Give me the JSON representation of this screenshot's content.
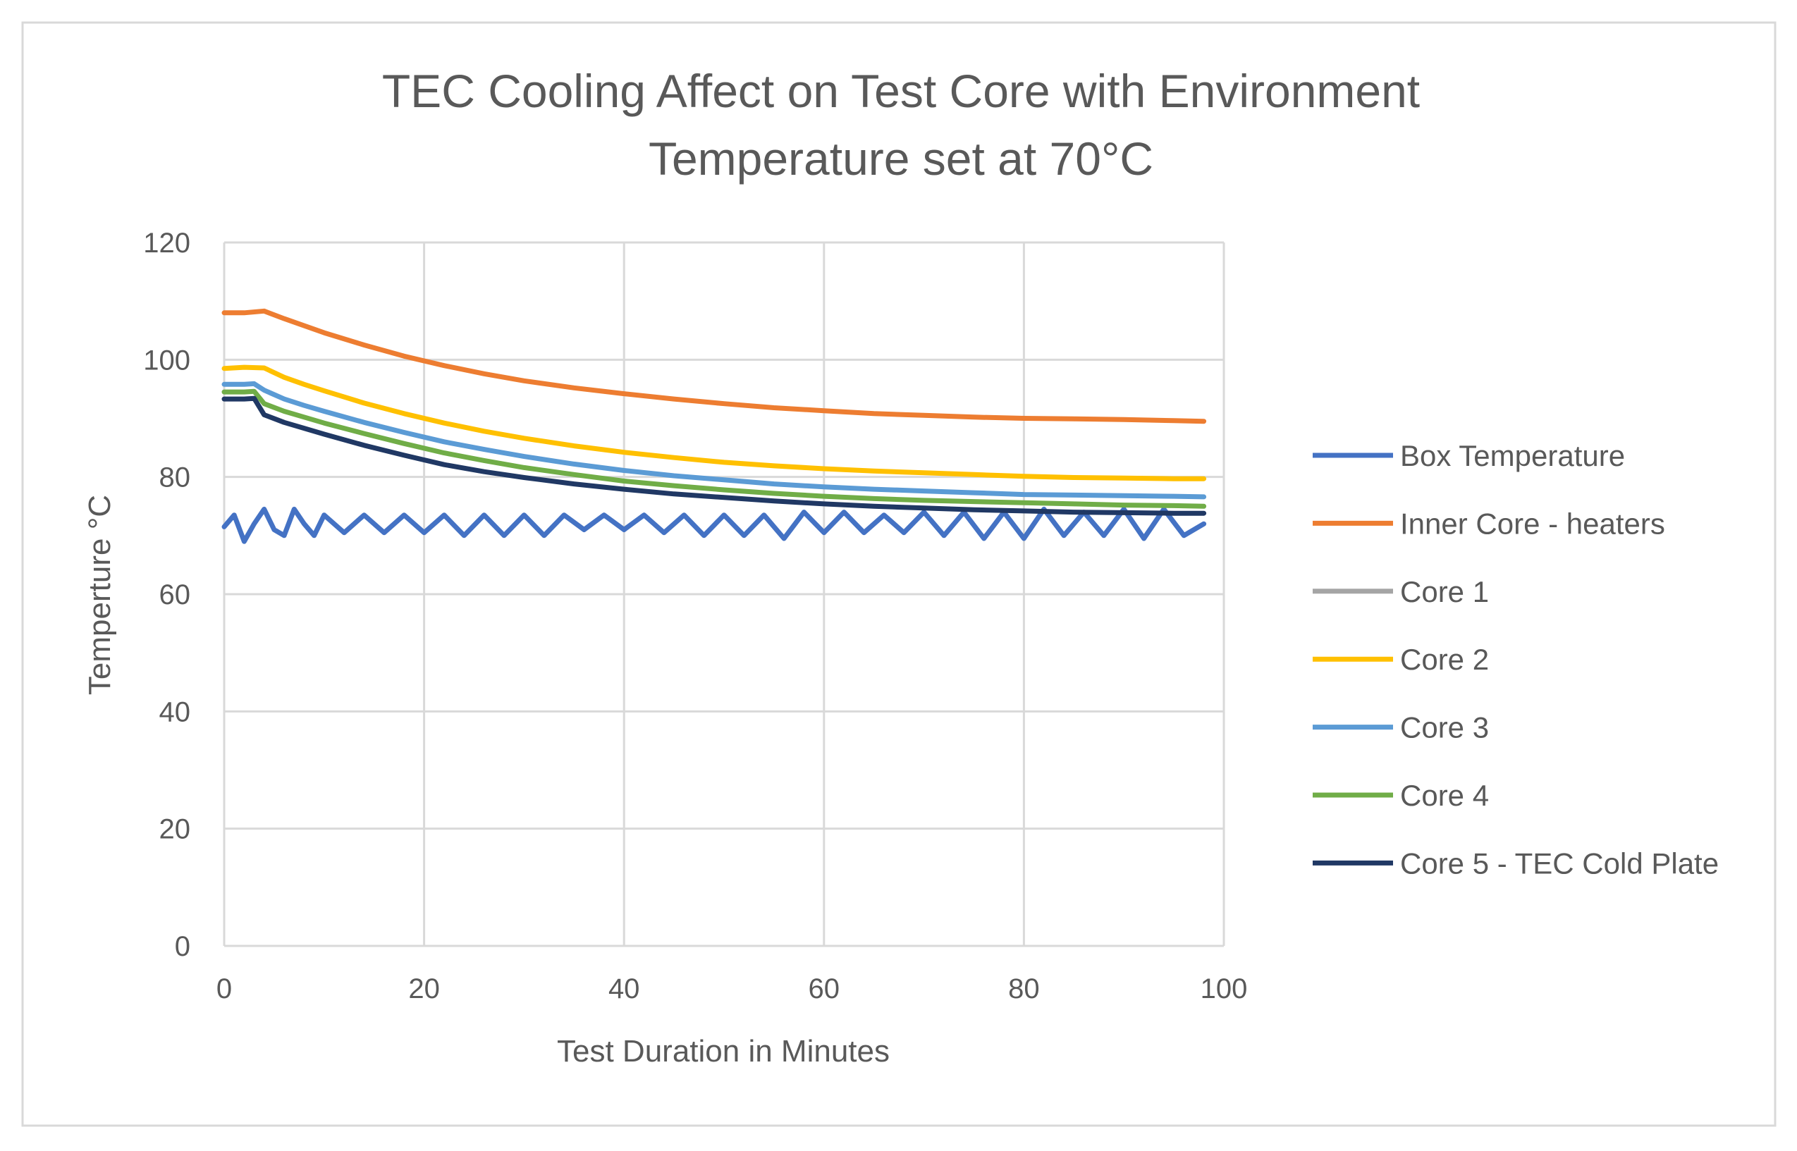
{
  "chart_data": {
    "type": "line",
    "title_lines": [
      "TEC Cooling Affect on Test Core with Environment",
      "Temperature set at 70°C"
    ],
    "xlabel": "Test Duration in Minutes",
    "ylabel": "Temperture °C",
    "xlim": [
      0,
      100
    ],
    "ylim": [
      0,
      120
    ],
    "xticks": [
      0,
      20,
      40,
      60,
      80,
      100
    ],
    "yticks": [
      0,
      20,
      40,
      60,
      80,
      100,
      120
    ],
    "xtick_labels": [
      "0",
      "20",
      "40",
      "60",
      "80",
      "100"
    ],
    "ytick_labels": [
      "0",
      "20",
      "40",
      "60",
      "80",
      "100",
      "120"
    ],
    "grid": true,
    "legend_position": "right",
    "x_range": [
      0,
      98
    ],
    "series": [
      {
        "name": "Box Temperature",
        "color": "#4472C4",
        "x": [
          0,
          1,
          2,
          3,
          4,
          5,
          6,
          7,
          8,
          9,
          10,
          12,
          14,
          16,
          18,
          20,
          22,
          24,
          26,
          28,
          30,
          32,
          34,
          36,
          38,
          40,
          42,
          44,
          46,
          48,
          50,
          52,
          54,
          56,
          58,
          60,
          62,
          64,
          66,
          68,
          70,
          72,
          74,
          76,
          78,
          80,
          82,
          84,
          86,
          88,
          90,
          92,
          94,
          96,
          98
        ],
        "values": [
          71.5,
          73.5,
          69,
          72,
          74.5,
          71,
          70,
          74.5,
          72,
          70,
          73.5,
          70.5,
          73.5,
          70.5,
          73.5,
          70.5,
          73.5,
          70,
          73.5,
          70,
          73.5,
          70,
          73.5,
          71,
          73.5,
          71,
          73.5,
          70.5,
          73.5,
          70,
          73.5,
          70,
          73.5,
          69.5,
          74,
          70.5,
          74,
          70.5,
          73.5,
          70.5,
          74,
          70,
          74,
          69.5,
          74,
          69.5,
          74.5,
          70,
          74,
          70,
          74.5,
          69.5,
          74.5,
          70,
          72
        ]
      },
      {
        "name": "Inner Core - heaters",
        "color": "#ED7D31",
        "x": [
          0,
          2,
          4,
          6,
          8,
          10,
          14,
          18,
          22,
          26,
          30,
          35,
          40,
          45,
          50,
          55,
          60,
          65,
          70,
          75,
          80,
          85,
          90,
          95,
          98
        ],
        "values": [
          108,
          108,
          108.3,
          107,
          105.8,
          104.6,
          102.5,
          100.6,
          99,
          97.6,
          96.4,
          95.2,
          94.2,
          93.3,
          92.5,
          91.8,
          91.3,
          90.8,
          90.5,
          90.2,
          90,
          89.9,
          89.8,
          89.6,
          89.5
        ]
      },
      {
        "name": "Core 1",
        "color": "#A5A5A5",
        "x": [
          0,
          98
        ],
        "values": [
          null,
          null
        ]
      },
      {
        "name": "Core 2",
        "color": "#FFC000",
        "x": [
          0,
          2,
          4,
          6,
          8,
          10,
          14,
          18,
          22,
          26,
          30,
          35,
          40,
          45,
          50,
          55,
          60,
          65,
          70,
          75,
          80,
          85,
          90,
          95,
          98
        ],
        "values": [
          98.5,
          98.7,
          98.6,
          97,
          95.8,
          94.7,
          92.6,
          90.8,
          89.2,
          87.8,
          86.6,
          85.3,
          84.2,
          83.3,
          82.5,
          81.9,
          81.4,
          81,
          80.7,
          80.4,
          80.1,
          79.9,
          79.8,
          79.7,
          79.7
        ]
      },
      {
        "name": "Core 3",
        "color": "#5B9BD5",
        "x": [
          0,
          2,
          3,
          4,
          6,
          8,
          10,
          14,
          18,
          22,
          26,
          30,
          35,
          40,
          45,
          50,
          55,
          60,
          65,
          70,
          75,
          80,
          85,
          90,
          95,
          98
        ],
        "values": [
          95.8,
          95.8,
          95.9,
          94.8,
          93.3,
          92.2,
          91.2,
          89.3,
          87.6,
          86,
          84.7,
          83.5,
          82.2,
          81.1,
          80.2,
          79.5,
          78.8,
          78.3,
          77.9,
          77.6,
          77.3,
          77,
          76.9,
          76.8,
          76.7,
          76.6
        ]
      },
      {
        "name": "Core 4",
        "color": "#70AD47",
        "x": [
          0,
          2,
          3,
          4,
          6,
          8,
          10,
          14,
          18,
          22,
          26,
          30,
          35,
          40,
          45,
          50,
          55,
          60,
          65,
          70,
          75,
          80,
          85,
          90,
          95,
          98
        ],
        "values": [
          94.5,
          94.5,
          94.6,
          92.5,
          91.2,
          90.2,
          89.2,
          87.4,
          85.7,
          84.1,
          82.8,
          81.6,
          80.4,
          79.3,
          78.5,
          77.8,
          77.2,
          76.7,
          76.3,
          76,
          75.8,
          75.6,
          75.4,
          75.2,
          75.1,
          75
        ]
      },
      {
        "name": "Core 5 - TEC Cold Plate",
        "color": "#203864",
        "x": [
          0,
          2,
          3,
          4,
          6,
          8,
          10,
          14,
          18,
          22,
          26,
          30,
          35,
          40,
          45,
          50,
          55,
          60,
          65,
          70,
          75,
          80,
          85,
          90,
          95,
          98
        ],
        "values": [
          93.3,
          93.3,
          93.4,
          90.6,
          89.3,
          88.3,
          87.3,
          85.4,
          83.7,
          82.1,
          80.9,
          79.9,
          78.8,
          77.9,
          77.1,
          76.5,
          75.9,
          75.4,
          75,
          74.7,
          74.4,
          74.2,
          74,
          73.9,
          73.8,
          73.8
        ]
      }
    ]
  }
}
